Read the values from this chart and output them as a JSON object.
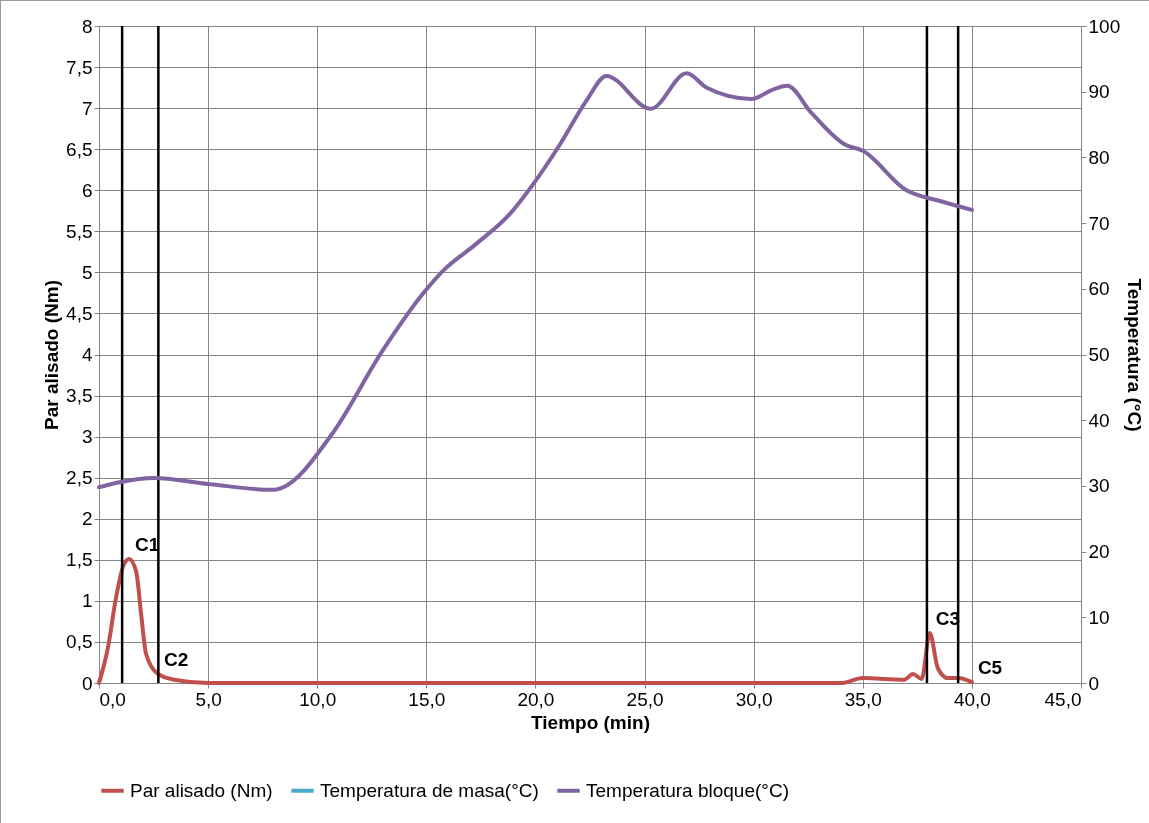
{
  "chart_data": {
    "type": "line",
    "xlabel": "Tiempo (min)",
    "ylabel": "Par alisado (Nm)",
    "y2label": "Temperatura (°C)",
    "xlim": [
      0,
      45
    ],
    "xticks": [
      {
        "value": 0,
        "label": "0,0"
      },
      {
        "value": 5,
        "label": "5,0"
      },
      {
        "value": 10,
        "label": "10,0"
      },
      {
        "value": 15,
        "label": "15,0"
      },
      {
        "value": 20,
        "label": "20,0"
      },
      {
        "value": 25,
        "label": "25,0"
      },
      {
        "value": 30,
        "label": "30,0"
      },
      {
        "value": 35,
        "label": "35,0"
      },
      {
        "value": 40,
        "label": "40,0"
      },
      {
        "value": 45,
        "label": "45,0"
      }
    ],
    "ylim": [
      0,
      8
    ],
    "yticks": [
      0,
      {
        "value": 0.5,
        "label": "0,5"
      },
      1,
      {
        "value": 1.5,
        "label": "1,5"
      },
      2,
      {
        "value": 2.5,
        "label": "2,5"
      },
      3,
      {
        "value": 3.5,
        "label": "3,5"
      },
      4,
      {
        "value": 4.5,
        "label": "4,5"
      },
      5,
      {
        "value": 5.5,
        "label": "5,5"
      },
      6,
      {
        "value": 6.5,
        "label": "6,5"
      },
      7,
      {
        "value": 7.5,
        "label": "7,5"
      },
      8
    ],
    "y2lim": [
      0,
      100
    ],
    "y2ticks": [
      0,
      10,
      20,
      30,
      40,
      50,
      60,
      70,
      80,
      90,
      100
    ],
    "grid": true,
    "legend": "bottom",
    "line_style": "solid",
    "series": [
      {
        "name": "Par alisado (Nm)",
        "color": "#c0504d",
        "x": [
          0,
          0.41,
          0.78,
          1.15,
          1.38,
          1.7,
          1.93,
          2.16,
          2.7,
          3.45,
          5,
          10,
          15,
          20,
          25,
          30,
          34,
          35,
          36.9,
          37.3,
          37.7,
          38.07,
          38.44,
          38.9,
          39.37,
          40
        ],
        "values": [
          0,
          0.43,
          1.04,
          1.45,
          1.51,
          1.36,
          0.84,
          0.35,
          0.11,
          0.04,
          0,
          0,
          0,
          0,
          0,
          0,
          0,
          0.06,
          0.04,
          0.11,
          0.05,
          0.61,
          0.18,
          0.06,
          0.06,
          0.01
        ]
      },
      {
        "name": "Temperatura de masa(°C)",
        "color": "#4bacc6",
        "axis": "y2"
      },
      {
        "name": "Temperatura bloque(°C)",
        "color": "#8064a2",
        "axis": "y2",
        "x": [
          0,
          1,
          2.5,
          5,
          8,
          8.38,
          10.68,
          12.98,
          14.83,
          15.75,
          17.27,
          18.83,
          19.89,
          21.13,
          22.33,
          23.25,
          25.28,
          26.93,
          27.85,
          29.88,
          30.94,
          31.54,
          32.64,
          34.16,
          35,
          37,
          38.5,
          40
        ],
        "values": [
          29.8,
          30.6,
          31.2,
          30.3,
          29.4,
          29.7,
          37.9,
          50.5,
          59.2,
          62.7,
          66.8,
          71.4,
          75.9,
          82,
          88.6,
          92.4,
          87.4,
          92.8,
          90.6,
          88.9,
          90.4,
          90.9,
          86.8,
          82,
          81,
          75,
          73.4,
          72
        ]
      }
    ],
    "ref_lines": [
      {
        "axis": "x",
        "value": 1.06,
        "color": "#000000"
      },
      {
        "axis": "x",
        "value": 2.72,
        "color": "#000000"
      },
      {
        "axis": "x",
        "value": 37.94,
        "color": "#000000"
      },
      {
        "axis": "x",
        "value": 39.37,
        "color": "#000000"
      }
    ],
    "annotations": [
      {
        "text": "C1",
        "x": 1.38,
        "y": 1.51
      },
      {
        "text": "C2",
        "x": 2.7,
        "y": 0.11
      },
      {
        "text": "C3",
        "x": 38.07,
        "y": 0.61
      },
      {
        "text": "C5",
        "x": 40,
        "y": 0.01
      }
    ]
  }
}
